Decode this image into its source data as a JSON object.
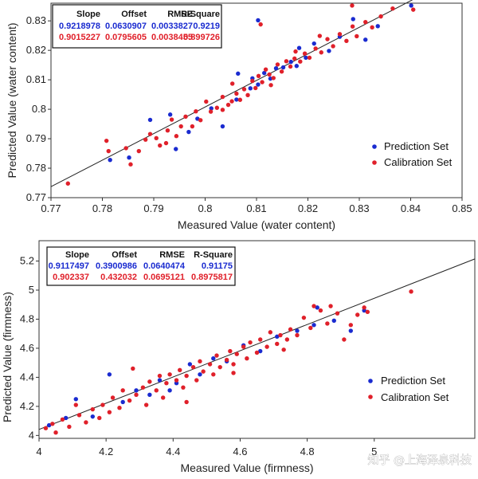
{
  "chart_data": [
    {
      "type": "scatter",
      "id": "water",
      "xlabel": "Measured Value (water content)",
      "ylabel": "Predicted Value (water content)",
      "xlim": [
        0.77,
        0.85
      ],
      "ylim": [
        0.77,
        0.836
      ],
      "xticks": [
        "0.77",
        "0.78",
        "0.79",
        "0.8",
        "0.81",
        "0.82",
        "0.83",
        "0.84",
        "0.85"
      ],
      "yticks": [
        "0.77",
        "0.78",
        "0.79",
        "0.8",
        "0.81",
        "0.82",
        "0.83"
      ],
      "stats": {
        "headers": [
          "Slope",
          "Offset",
          "RMSE",
          "R-Square"
        ],
        "prediction": [
          "0.9218978",
          "0.0630907",
          "0.0033827",
          "0.9219"
        ],
        "calibration": [
          "0.9015227",
          "0.0795605",
          "0.0038455",
          "0.899726"
        ]
      },
      "legend": [
        "Prediction Set",
        "Calibration Set"
      ],
      "legend_position": "lower-right",
      "series": [
        {
          "name": "Prediction Set",
          "color": "#1a2bd0",
          "points": [
            [
              0.7815,
              0.7828
            ],
            [
              0.7852,
              0.7836
            ],
            [
              0.7893,
              0.7964
            ],
            [
              0.7932,
              0.7982
            ],
            [
              0.7968,
              0.7923
            ],
            [
              0.7985,
              0.7968
            ],
            [
              0.8012,
              0.8003
            ],
            [
              0.8034,
              0.7942
            ],
            [
              0.8061,
              0.8033
            ],
            [
              0.8088,
              0.8071
            ],
            [
              0.8092,
              0.8105
            ],
            [
              0.8103,
              0.8084
            ],
            [
              0.8115,
              0.8123
            ],
            [
              0.8127,
              0.8104
            ],
            [
              0.8138,
              0.8139
            ],
            [
              0.8152,
              0.8142
            ],
            [
              0.8167,
              0.8161
            ],
            [
              0.8178,
              0.8147
            ],
            [
              0.8196,
              0.8175
            ],
            [
              0.8212,
              0.8223
            ],
            [
              0.8241,
              0.8198
            ],
            [
              0.8262,
              0.8246
            ],
            [
              0.8288,
              0.8306
            ],
            [
              0.8312,
              0.8236
            ],
            [
              0.8336,
              0.8282
            ],
            [
              0.8401,
              0.8352
            ],
            [
              0.8103,
              0.8302
            ],
            [
              0.8064,
              0.8121
            ],
            [
              0.7943,
              0.7865
            ],
            [
              0.8183,
              0.8208
            ]
          ]
        },
        {
          "name": "Calibration Set",
          "color": "#e0202a",
          "points": [
            [
              0.7733,
              0.7748
            ],
            [
              0.7808,
              0.7893
            ],
            [
              0.7812,
              0.7858
            ],
            [
              0.7846,
              0.7868
            ],
            [
              0.7855,
              0.7813
            ],
            [
              0.7871,
              0.7858
            ],
            [
              0.7884,
              0.7897
            ],
            [
              0.7893,
              0.7916
            ],
            [
              0.7905,
              0.7902
            ],
            [
              0.7912,
              0.7877
            ],
            [
              0.7927,
              0.7928
            ],
            [
              0.7935,
              0.7965
            ],
            [
              0.7944,
              0.7909
            ],
            [
              0.7953,
              0.7942
            ],
            [
              0.7962,
              0.7975
            ],
            [
              0.7975,
              0.7942
            ],
            [
              0.7982,
              0.7993
            ],
            [
              0.7991,
              0.7963
            ],
            [
              0.8002,
              0.8026
            ],
            [
              0.8011,
              0.7992
            ],
            [
              0.8023,
              0.8005
            ],
            [
              0.8034,
              0.8042
            ],
            [
              0.8045,
              0.8015
            ],
            [
              0.8052,
              0.8027
            ],
            [
              0.8061,
              0.8053
            ],
            [
              0.8068,
              0.8032
            ],
            [
              0.8076,
              0.8068
            ],
            [
              0.8083,
              0.8048
            ],
            [
              0.8092,
              0.8096
            ],
            [
              0.8098,
              0.8072
            ],
            [
              0.8104,
              0.8113
            ],
            [
              0.8111,
              0.8092
            ],
            [
              0.8118,
              0.8135
            ],
            [
              0.8125,
              0.8118
            ],
            [
              0.8133,
              0.8106
            ],
            [
              0.8141,
              0.8152
            ],
            [
              0.8149,
              0.8128
            ],
            [
              0.8158,
              0.8163
            ],
            [
              0.8166,
              0.8145
            ],
            [
              0.8174,
              0.8172
            ],
            [
              0.8185,
              0.8162
            ],
            [
              0.8194,
              0.8189
            ],
            [
              0.8203,
              0.8175
            ],
            [
              0.8215,
              0.8206
            ],
            [
              0.8226,
              0.8193
            ],
            [
              0.8238,
              0.8238
            ],
            [
              0.8249,
              0.8214
            ],
            [
              0.8262,
              0.8255
            ],
            [
              0.8275,
              0.8232
            ],
            [
              0.8287,
              0.8281
            ],
            [
              0.8295,
              0.8248
            ],
            [
              0.8312,
              0.8296
            ],
            [
              0.8325,
              0.8278
            ],
            [
              0.8342,
              0.8315
            ],
            [
              0.8286,
              0.8352
            ],
            [
              0.8365,
              0.8342
            ],
            [
              0.8405,
              0.8338
            ],
            [
              0.8108,
              0.8288
            ],
            [
              0.8034,
              0.7998
            ],
            [
              0.8053,
              0.8087
            ],
            [
              0.7924,
              0.7885
            ],
            [
              0.8128,
              0.8082
            ],
            [
              0.8176,
              0.8196
            ],
            [
              0.8223,
              0.8249
            ]
          ]
        }
      ]
    },
    {
      "type": "scatter",
      "id": "firmness",
      "xlabel": "Measured Value (firmness)",
      "ylabel": "Predicted Value (firmness)",
      "xlim": [
        4.0,
        5.3
      ],
      "ylim": [
        3.98,
        5.34
      ],
      "xticks": [
        "4",
        "4.2",
        "4.4",
        "4.6",
        "4.8",
        "5"
      ],
      "yticks": [
        "4",
        "4.2",
        "4.4",
        "4.6",
        "4.8",
        "5",
        "5.2"
      ],
      "stats": {
        "headers": [
          "Slope",
          "Offset",
          "RMSE",
          "R-Square"
        ],
        "prediction": [
          "0.9117497",
          "0.3900986",
          "0.0640474",
          "0.91175"
        ],
        "calibration": [
          "0.902337",
          "0.432032",
          "0.0695121",
          "0.8975817"
        ]
      },
      "legend": [
        "Prediction Set",
        "Calibration Set"
      ],
      "legend_position": "lower-right",
      "series": [
        {
          "name": "Prediction Set",
          "color": "#1a2bd0",
          "points": [
            [
              4.03,
              4.07
            ],
            [
              4.08,
              4.12
            ],
            [
              4.11,
              4.25
            ],
            [
              4.16,
              4.13
            ],
            [
              4.21,
              4.42
            ],
            [
              4.25,
              4.23
            ],
            [
              4.29,
              4.31
            ],
            [
              4.33,
              4.28
            ],
            [
              4.36,
              4.38
            ],
            [
              4.41,
              4.36
            ],
            [
              4.45,
              4.49
            ],
            [
              4.48,
              4.42
            ],
            [
              4.52,
              4.53
            ],
            [
              4.56,
              4.51
            ],
            [
              4.61,
              4.62
            ],
            [
              4.66,
              4.58
            ],
            [
              4.71,
              4.68
            ],
            [
              4.77,
              4.72
            ],
            [
              4.82,
              4.76
            ],
            [
              4.88,
              4.79
            ],
            [
              4.93,
              4.72
            ],
            [
              4.97,
              4.86
            ],
            [
              4.83,
              4.88
            ],
            [
              4.39,
              4.31
            ]
          ]
        },
        {
          "name": "Calibration Set",
          "color": "#e0202a",
          "points": [
            [
              4.02,
              4.05
            ],
            [
              4.04,
              4.08
            ],
            [
              4.05,
              4.02
            ],
            [
              4.07,
              4.11
            ],
            [
              4.09,
              4.06
            ],
            [
              4.11,
              4.21
            ],
            [
              4.12,
              4.14
            ],
            [
              4.14,
              4.09
            ],
            [
              4.16,
              4.18
            ],
            [
              4.18,
              4.12
            ],
            [
              4.19,
              4.21
            ],
            [
              4.21,
              4.16
            ],
            [
              4.22,
              4.26
            ],
            [
              4.24,
              4.19
            ],
            [
              4.25,
              4.31
            ],
            [
              4.27,
              4.24
            ],
            [
              4.28,
              4.46
            ],
            [
              4.29,
              4.28
            ],
            [
              4.31,
              4.33
            ],
            [
              4.32,
              4.21
            ],
            [
              4.33,
              4.37
            ],
            [
              4.35,
              4.31
            ],
            [
              4.36,
              4.41
            ],
            [
              4.37,
              4.26
            ],
            [
              4.38,
              4.36
            ],
            [
              4.39,
              4.42
            ],
            [
              4.41,
              4.38
            ],
            [
              4.42,
              4.45
            ],
            [
              4.43,
              4.33
            ],
            [
              4.44,
              4.41
            ],
            [
              4.46,
              4.47
            ],
            [
              4.47,
              4.38
            ],
            [
              4.48,
              4.51
            ],
            [
              4.49,
              4.44
            ],
            [
              4.51,
              4.49
            ],
            [
              4.52,
              4.42
            ],
            [
              4.53,
              4.55
            ],
            [
              4.54,
              4.47
            ],
            [
              4.56,
              4.52
            ],
            [
              4.57,
              4.58
            ],
            [
              4.58,
              4.49
            ],
            [
              4.59,
              4.56
            ],
            [
              4.61,
              4.61
            ],
            [
              4.62,
              4.53
            ],
            [
              4.63,
              4.64
            ],
            [
              4.65,
              4.57
            ],
            [
              4.66,
              4.66
            ],
            [
              4.68,
              4.61
            ],
            [
              4.69,
              4.71
            ],
            [
              4.71,
              4.63
            ],
            [
              4.72,
              4.69
            ],
            [
              4.74,
              4.66
            ],
            [
              4.75,
              4.73
            ],
            [
              4.77,
              4.69
            ],
            [
              4.79,
              4.81
            ],
            [
              4.81,
              4.74
            ],
            [
              4.82,
              4.89
            ],
            [
              4.84,
              4.86
            ],
            [
              4.86,
              4.77
            ],
            [
              4.87,
              4.89
            ],
            [
              4.89,
              4.84
            ],
            [
              4.91,
              4.66
            ],
            [
              4.93,
              4.76
            ],
            [
              4.95,
              4.83
            ],
            [
              4.97,
              4.88
            ],
            [
              4.98,
              4.85
            ],
            [
              5.11,
              4.99
            ],
            [
              4.44,
              4.23
            ],
            [
              4.58,
              4.43
            ],
            [
              4.73,
              4.59
            ]
          ]
        }
      ]
    }
  ],
  "watermark": "知乎 @上海泽泉科技"
}
